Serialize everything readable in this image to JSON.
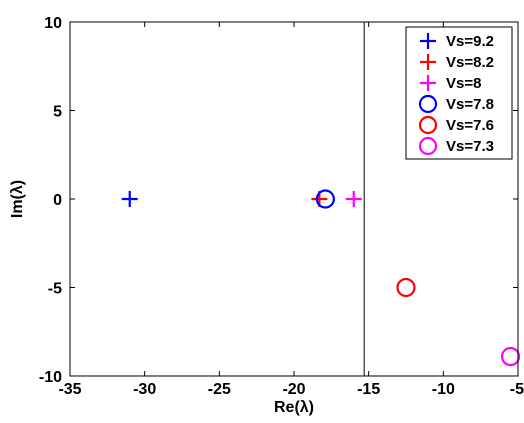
{
  "chart_data": {
    "type": "scatter",
    "xlabel": "Re(λ)",
    "ylabel": "Im(λ)",
    "xlim": [
      -35,
      -5
    ],
    "ylim": [
      -10,
      10
    ],
    "xticks": [
      -35,
      -30,
      -25,
      -20,
      -15,
      -10,
      -5
    ],
    "yticks": [
      -10,
      -5,
      0,
      5,
      10
    ],
    "grid": false,
    "legend_position": "top-right",
    "vertical_line_x": -15.3,
    "series": [
      {
        "name": "Vs=9.2",
        "marker": "plus",
        "color": "#0000ff",
        "points": [
          [
            -31,
            0
          ]
        ]
      },
      {
        "name": "Vs=8.2",
        "marker": "plus",
        "color": "#ff0000",
        "points": [
          [
            -18.3,
            0
          ]
        ]
      },
      {
        "name": "Vs=8",
        "marker": "plus",
        "color": "#ff00ff",
        "points": [
          [
            -16,
            0
          ]
        ]
      },
      {
        "name": "Vs=7.8",
        "marker": "circle",
        "color": "#0000ff",
        "points": [
          [
            -17.9,
            0
          ]
        ]
      },
      {
        "name": "Vs=7.6",
        "marker": "circle",
        "color": "#ff0000",
        "points": [
          [
            -12.5,
            -5
          ]
        ]
      },
      {
        "name": "Vs=7.3",
        "marker": "circle",
        "color": "#ff00ff",
        "points": [
          [
            -5.5,
            -8.9
          ]
        ]
      }
    ]
  }
}
